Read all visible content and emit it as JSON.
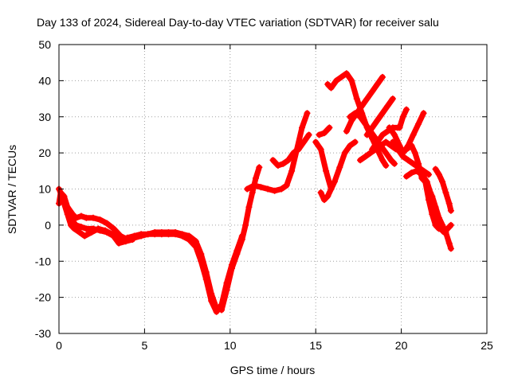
{
  "chart_data": {
    "type": "scatter",
    "title": "Day 133 of 2024, Sidereal Day-to-day VTEC variation (SDTVAR) for receiver salu",
    "xlabel": "GPS time / hours",
    "ylabel": "SDTVAR / TECUs",
    "xlim": [
      0,
      25
    ],
    "ylim": [
      -30,
      50
    ],
    "xticks": [
      "0",
      "5",
      "10",
      "15",
      "20",
      "25"
    ],
    "xtick_values": [
      0,
      5,
      10,
      15,
      20,
      25
    ],
    "yticks": [
      "-30",
      "-20",
      "-10",
      "0",
      "10",
      "20",
      "30",
      "40",
      "50"
    ],
    "ytick_values": [
      -30,
      -20,
      -10,
      0,
      10,
      20,
      30,
      40,
      50
    ],
    "grid": true,
    "marker": "plus",
    "color": "#ff0000",
    "series": [
      {
        "points": [
          [
            0.0,
            6
          ],
          [
            0.1,
            9
          ],
          [
            0.3,
            8
          ],
          [
            0.5,
            5
          ],
          [
            0.8,
            3
          ],
          [
            1.0,
            2
          ],
          [
            1.3,
            2.5
          ],
          [
            1.6,
            2
          ],
          [
            2.0,
            2
          ],
          [
            2.4,
            1.5
          ],
          [
            2.8,
            0.5
          ],
          [
            3.2,
            -1
          ],
          [
            3.6,
            -3
          ],
          [
            4.0,
            -4
          ],
          [
            4.4,
            -3.5
          ],
          [
            4.8,
            -3
          ],
          [
            5.2,
            -2.5
          ],
          [
            5.6,
            -2
          ],
          [
            6.0,
            -2
          ],
          [
            6.4,
            -2
          ],
          [
            6.8,
            -2
          ],
          [
            7.2,
            -2.5
          ],
          [
            7.6,
            -3
          ],
          [
            8.0,
            -4.5
          ],
          [
            8.3,
            -8
          ],
          [
            8.6,
            -13
          ],
          [
            8.9,
            -19
          ],
          [
            9.2,
            -23
          ],
          [
            9.5,
            -23.5
          ],
          [
            9.8,
            -18
          ],
          [
            10.1,
            -12
          ],
          [
            10.4,
            -8
          ],
          [
            10.7,
            -4
          ],
          [
            10.9,
            0
          ],
          [
            11.1,
            5
          ],
          [
            11.3,
            9
          ],
          [
            11.5,
            13
          ],
          [
            11.7,
            16
          ]
        ]
      },
      {
        "points": [
          [
            0.0,
            10
          ],
          [
            0.2,
            8
          ],
          [
            0.4,
            5
          ],
          [
            0.6,
            3
          ],
          [
            0.8,
            1
          ],
          [
            1.0,
            0
          ],
          [
            1.3,
            -0.5
          ],
          [
            1.6,
            -1
          ],
          [
            2.0,
            -1
          ],
          [
            2.4,
            -1.5
          ],
          [
            2.8,
            -2
          ],
          [
            3.2,
            -3
          ],
          [
            3.6,
            -4
          ],
          [
            4.0,
            -3.5
          ],
          [
            4.4,
            -3
          ],
          [
            4.8,
            -2.5
          ],
          [
            5.2,
            -2.5
          ],
          [
            5.6,
            -2.5
          ],
          [
            6.0,
            -2.5
          ],
          [
            6.4,
            -2.5
          ],
          [
            6.8,
            -2.5
          ],
          [
            7.2,
            -3
          ],
          [
            7.6,
            -4
          ],
          [
            8.0,
            -6
          ],
          [
            8.3,
            -10
          ],
          [
            8.6,
            -15
          ],
          [
            8.9,
            -21
          ],
          [
            9.2,
            -24
          ],
          [
            9.5,
            -22
          ],
          [
            9.8,
            -16
          ],
          [
            10.1,
            -11
          ],
          [
            10.4,
            -7
          ],
          [
            10.7,
            -3
          ]
        ]
      },
      {
        "points": [
          [
            0.1,
            8
          ],
          [
            0.3,
            6
          ],
          [
            0.5,
            3
          ],
          [
            0.7,
            0
          ],
          [
            0.9,
            -1
          ],
          [
            1.2,
            -2
          ],
          [
            1.5,
            -3
          ],
          [
            1.9,
            -2
          ],
          [
            2.3,
            -1
          ],
          [
            2.7,
            -1.5
          ],
          [
            3.1,
            -2.5
          ],
          [
            3.5,
            -5
          ],
          [
            3.9,
            -4.5
          ],
          [
            4.3,
            -4
          ]
        ]
      },
      {
        "points": [
          [
            11.0,
            10
          ],
          [
            11.4,
            11
          ],
          [
            11.8,
            10.5
          ],
          [
            12.2,
            10
          ],
          [
            12.6,
            9.5
          ],
          [
            13.0,
            10
          ],
          [
            13.3,
            11
          ],
          [
            13.6,
            15
          ],
          [
            13.9,
            21
          ],
          [
            14.2,
            27
          ],
          [
            14.5,
            31
          ]
        ]
      },
      {
        "points": [
          [
            12.5,
            18
          ],
          [
            12.8,
            16.5
          ],
          [
            13.1,
            17
          ],
          [
            13.4,
            18
          ],
          [
            13.7,
            20
          ],
          [
            14.0,
            21
          ],
          [
            14.3,
            23
          ],
          [
            14.6,
            25
          ]
        ]
      },
      {
        "points": [
          [
            15.0,
            23
          ],
          [
            15.3,
            21
          ],
          [
            15.6,
            15
          ],
          [
            15.9,
            10
          ],
          [
            16.1,
            12
          ],
          [
            16.4,
            16
          ],
          [
            16.7,
            20
          ],
          [
            17.0,
            22
          ],
          [
            17.3,
            23
          ]
        ]
      },
      {
        "points": [
          [
            15.2,
            25
          ],
          [
            15.5,
            25.5
          ],
          [
            15.8,
            27
          ]
        ]
      },
      {
        "points": [
          [
            15.3,
            9
          ],
          [
            15.5,
            7
          ],
          [
            15.7,
            8
          ],
          [
            15.9,
            10
          ]
        ]
      },
      {
        "points": [
          [
            15.7,
            39
          ],
          [
            15.9,
            38
          ],
          [
            16.2,
            40
          ],
          [
            16.5,
            41
          ],
          [
            16.8,
            42
          ],
          [
            17.1,
            40
          ],
          [
            17.4,
            35
          ],
          [
            17.7,
            31
          ],
          [
            18.0,
            27
          ],
          [
            18.3,
            24
          ],
          [
            18.6,
            21
          ],
          [
            18.9,
            18
          ],
          [
            19.1,
            16.5
          ]
        ]
      },
      {
        "points": [
          [
            16.8,
            26
          ],
          [
            17.1,
            29
          ],
          [
            17.4,
            31
          ],
          [
            17.7,
            33
          ],
          [
            18.0,
            35
          ],
          [
            18.3,
            37
          ],
          [
            18.6,
            39
          ],
          [
            18.9,
            41
          ]
        ]
      },
      {
        "points": [
          [
            17.0,
            30
          ],
          [
            17.3,
            31
          ],
          [
            17.6,
            30
          ],
          [
            17.9,
            28
          ],
          [
            18.2,
            26
          ],
          [
            18.5,
            24
          ],
          [
            18.8,
            22
          ],
          [
            19.1,
            20
          ],
          [
            19.4,
            18
          ],
          [
            19.6,
            17
          ]
        ]
      },
      {
        "points": [
          [
            17.6,
            18
          ],
          [
            17.9,
            19
          ],
          [
            18.2,
            20
          ],
          [
            18.5,
            21
          ],
          [
            18.8,
            22
          ],
          [
            19.1,
            23
          ],
          [
            19.4,
            22
          ],
          [
            19.7,
            21
          ],
          [
            19.9,
            21
          ]
        ]
      },
      {
        "points": [
          [
            18.0,
            25
          ],
          [
            18.3,
            27
          ],
          [
            18.6,
            29
          ],
          [
            18.9,
            31
          ],
          [
            19.2,
            33
          ],
          [
            19.5,
            35
          ]
        ]
      },
      {
        "points": [
          [
            18.3,
            21
          ],
          [
            18.6,
            23
          ],
          [
            18.9,
            25
          ],
          [
            19.2,
            26
          ],
          [
            19.5,
            27
          ],
          [
            19.8,
            27
          ]
        ]
      },
      {
        "points": [
          [
            19.5,
            23
          ],
          [
            19.8,
            21
          ],
          [
            20.1,
            19
          ],
          [
            20.4,
            18
          ],
          [
            20.7,
            17
          ],
          [
            21.0,
            16
          ],
          [
            21.3,
            15
          ],
          [
            21.6,
            14
          ]
        ]
      },
      {
        "points": [
          [
            19.3,
            27
          ],
          [
            19.6,
            25
          ],
          [
            19.9,
            22
          ],
          [
            20.1,
            20
          ],
          [
            20.4,
            22
          ],
          [
            20.7,
            25
          ],
          [
            21.0,
            28
          ],
          [
            21.3,
            31
          ]
        ]
      },
      {
        "points": [
          [
            19.9,
            27
          ],
          [
            20.1,
            30
          ],
          [
            20.3,
            32
          ]
        ]
      },
      {
        "points": [
          [
            20.0,
            20
          ],
          [
            20.3,
            21
          ],
          [
            20.6,
            22
          ],
          [
            20.8,
            20
          ],
          [
            21.0,
            17
          ],
          [
            21.2,
            13
          ],
          [
            21.4,
            12
          ],
          [
            21.6,
            10
          ],
          [
            21.8,
            8
          ],
          [
            22.0,
            5
          ],
          [
            22.2,
            2
          ],
          [
            22.4,
            0
          ],
          [
            22.6,
            -2
          ],
          [
            22.8,
            -5
          ],
          [
            22.9,
            -6.5
          ]
        ]
      },
      {
        "points": [
          [
            20.3,
            13.5
          ],
          [
            20.6,
            14.5
          ],
          [
            20.9,
            15
          ],
          [
            21.2,
            14
          ],
          [
            21.5,
            12
          ],
          [
            21.7,
            9
          ],
          [
            21.9,
            5
          ],
          [
            22.1,
            2
          ],
          [
            22.3,
            -1
          ],
          [
            22.5,
            -2
          ],
          [
            22.7,
            -1
          ],
          [
            22.9,
            0
          ]
        ]
      },
      {
        "points": [
          [
            21.4,
            12
          ],
          [
            21.6,
            7
          ],
          [
            21.8,
            3
          ],
          [
            22.0,
            0
          ],
          [
            22.2,
            -1
          ]
        ]
      },
      {
        "points": [
          [
            22.0,
            15.5
          ],
          [
            22.2,
            14
          ],
          [
            22.4,
            12
          ],
          [
            22.6,
            9
          ],
          [
            22.8,
            6
          ],
          [
            22.9,
            4
          ]
        ]
      }
    ]
  }
}
